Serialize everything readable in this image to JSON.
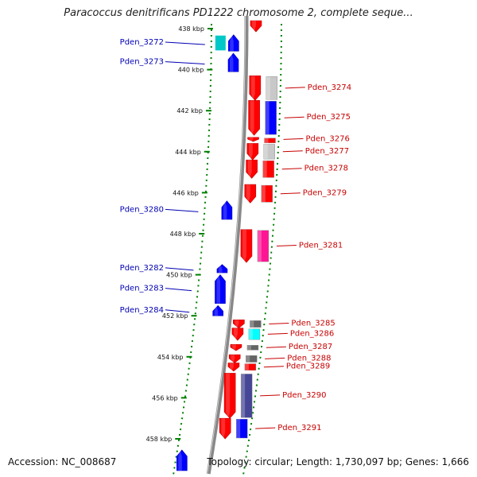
{
  "title": "Paracoccus denitrificans PD1222 chromosome 2, complete seque...",
  "footer": {
    "accession": "Accession: NC_008687",
    "info": "Topology: circular; Length: 1,730,097 bp; Genes: 1,666"
  },
  "ticks": [
    {
      "label": "438 kbp",
      "kbp": 438
    },
    {
      "label": "440 kbp",
      "kbp": 440
    },
    {
      "label": "442 kbp",
      "kbp": 442
    },
    {
      "label": "444 kbp",
      "kbp": 444
    },
    {
      "label": "446 kbp",
      "kbp": 446
    },
    {
      "label": "448 kbp",
      "kbp": 448
    },
    {
      "label": "450 kbp",
      "kbp": 450
    },
    {
      "label": "452 kbp",
      "kbp": 452
    },
    {
      "label": "454 kbp",
      "kbp": 454
    },
    {
      "label": "456 kbp",
      "kbp": 456
    },
    {
      "label": "458 kbp",
      "kbp": 458
    }
  ],
  "genes_left": [
    {
      "name": "Pden_3272",
      "start_kbp": 438.3,
      "end_kbp": 439.1,
      "strand": "-",
      "cog_color": "#00c8c8"
    },
    {
      "name": "Pden_3273",
      "start_kbp": 439.2,
      "end_kbp": 440.1,
      "strand": "-",
      "cog_color": "#0000ff"
    },
    {
      "name": "Pden_3280",
      "start_kbp": 446.4,
      "end_kbp": 447.3,
      "strand": "-",
      "cog_color": "#0000ff"
    },
    {
      "name": "Pden_3282",
      "start_kbp": 449.5,
      "end_kbp": 449.9,
      "strand": "-",
      "cog_color": "#0000ff"
    },
    {
      "name": "Pden_3283",
      "start_kbp": 450.0,
      "end_kbp": 451.4,
      "strand": "-",
      "cog_color": "#0000ff"
    },
    {
      "name": "Pden_3284",
      "start_kbp": 451.5,
      "end_kbp": 452.0,
      "strand": "-",
      "cog_color": "#0000ff"
    }
  ],
  "genes_right": [
    {
      "name": "Pden_3274",
      "start_kbp": 440.3,
      "end_kbp": 441.5,
      "strand": "+",
      "cog_color": "#c8c8c8"
    },
    {
      "name": "Pden_3275",
      "start_kbp": 441.5,
      "end_kbp": 443.2,
      "strand": "+",
      "cog_color": "#0000ff"
    },
    {
      "name": "Pden_3276",
      "start_kbp": 443.3,
      "end_kbp": 443.5,
      "strand": "+",
      "cog_color": "#ff0000"
    },
    {
      "name": "Pden_3277",
      "start_kbp": 443.6,
      "end_kbp": 444.4,
      "strand": "+",
      "cog_color": "#c8c8c8"
    },
    {
      "name": "Pden_3278",
      "start_kbp": 444.4,
      "end_kbp": 445.3,
      "strand": "+",
      "cog_color": "#ff0000"
    },
    {
      "name": "Pden_3279",
      "start_kbp": 445.6,
      "end_kbp": 446.5,
      "strand": "+",
      "cog_color": "#ff0000"
    },
    {
      "name": "Pden_3281",
      "start_kbp": 447.8,
      "end_kbp": 449.4,
      "strand": "+",
      "cog_color": "#ff1493"
    },
    {
      "name": "Pden_3285",
      "start_kbp": 452.2,
      "end_kbp": 452.6,
      "strand": "+",
      "cog_color": "#646464"
    },
    {
      "name": "Pden_3286",
      "start_kbp": 452.6,
      "end_kbp": 453.2,
      "strand": "+",
      "cog_color": "#00ffff"
    },
    {
      "name": "Pden_3287",
      "start_kbp": 453.4,
      "end_kbp": 453.7,
      "strand": "+",
      "cog_color": "#646464"
    },
    {
      "name": "Pden_3288",
      "start_kbp": 453.9,
      "end_kbp": 454.3,
      "strand": "+",
      "cog_color": "#646464"
    },
    {
      "name": "Pden_3289",
      "start_kbp": 454.3,
      "end_kbp": 454.7,
      "strand": "+",
      "cog_color": "#ff0000"
    },
    {
      "name": "Pden_3290",
      "start_kbp": 454.8,
      "end_kbp": 457.0,
      "strand": "+",
      "cog_color": "#464696"
    },
    {
      "name": "Pden_3291",
      "start_kbp": 457.0,
      "end_kbp": 458.0,
      "strand": "+",
      "cog_color": "#0000ff"
    }
  ],
  "colors": {
    "forward_strand": "#ff0000",
    "reverse_strand": "#0000ff",
    "backbone": "#888888",
    "tick": "#008000",
    "left_label": "#0000b4",
    "right_label": "#c80000"
  }
}
